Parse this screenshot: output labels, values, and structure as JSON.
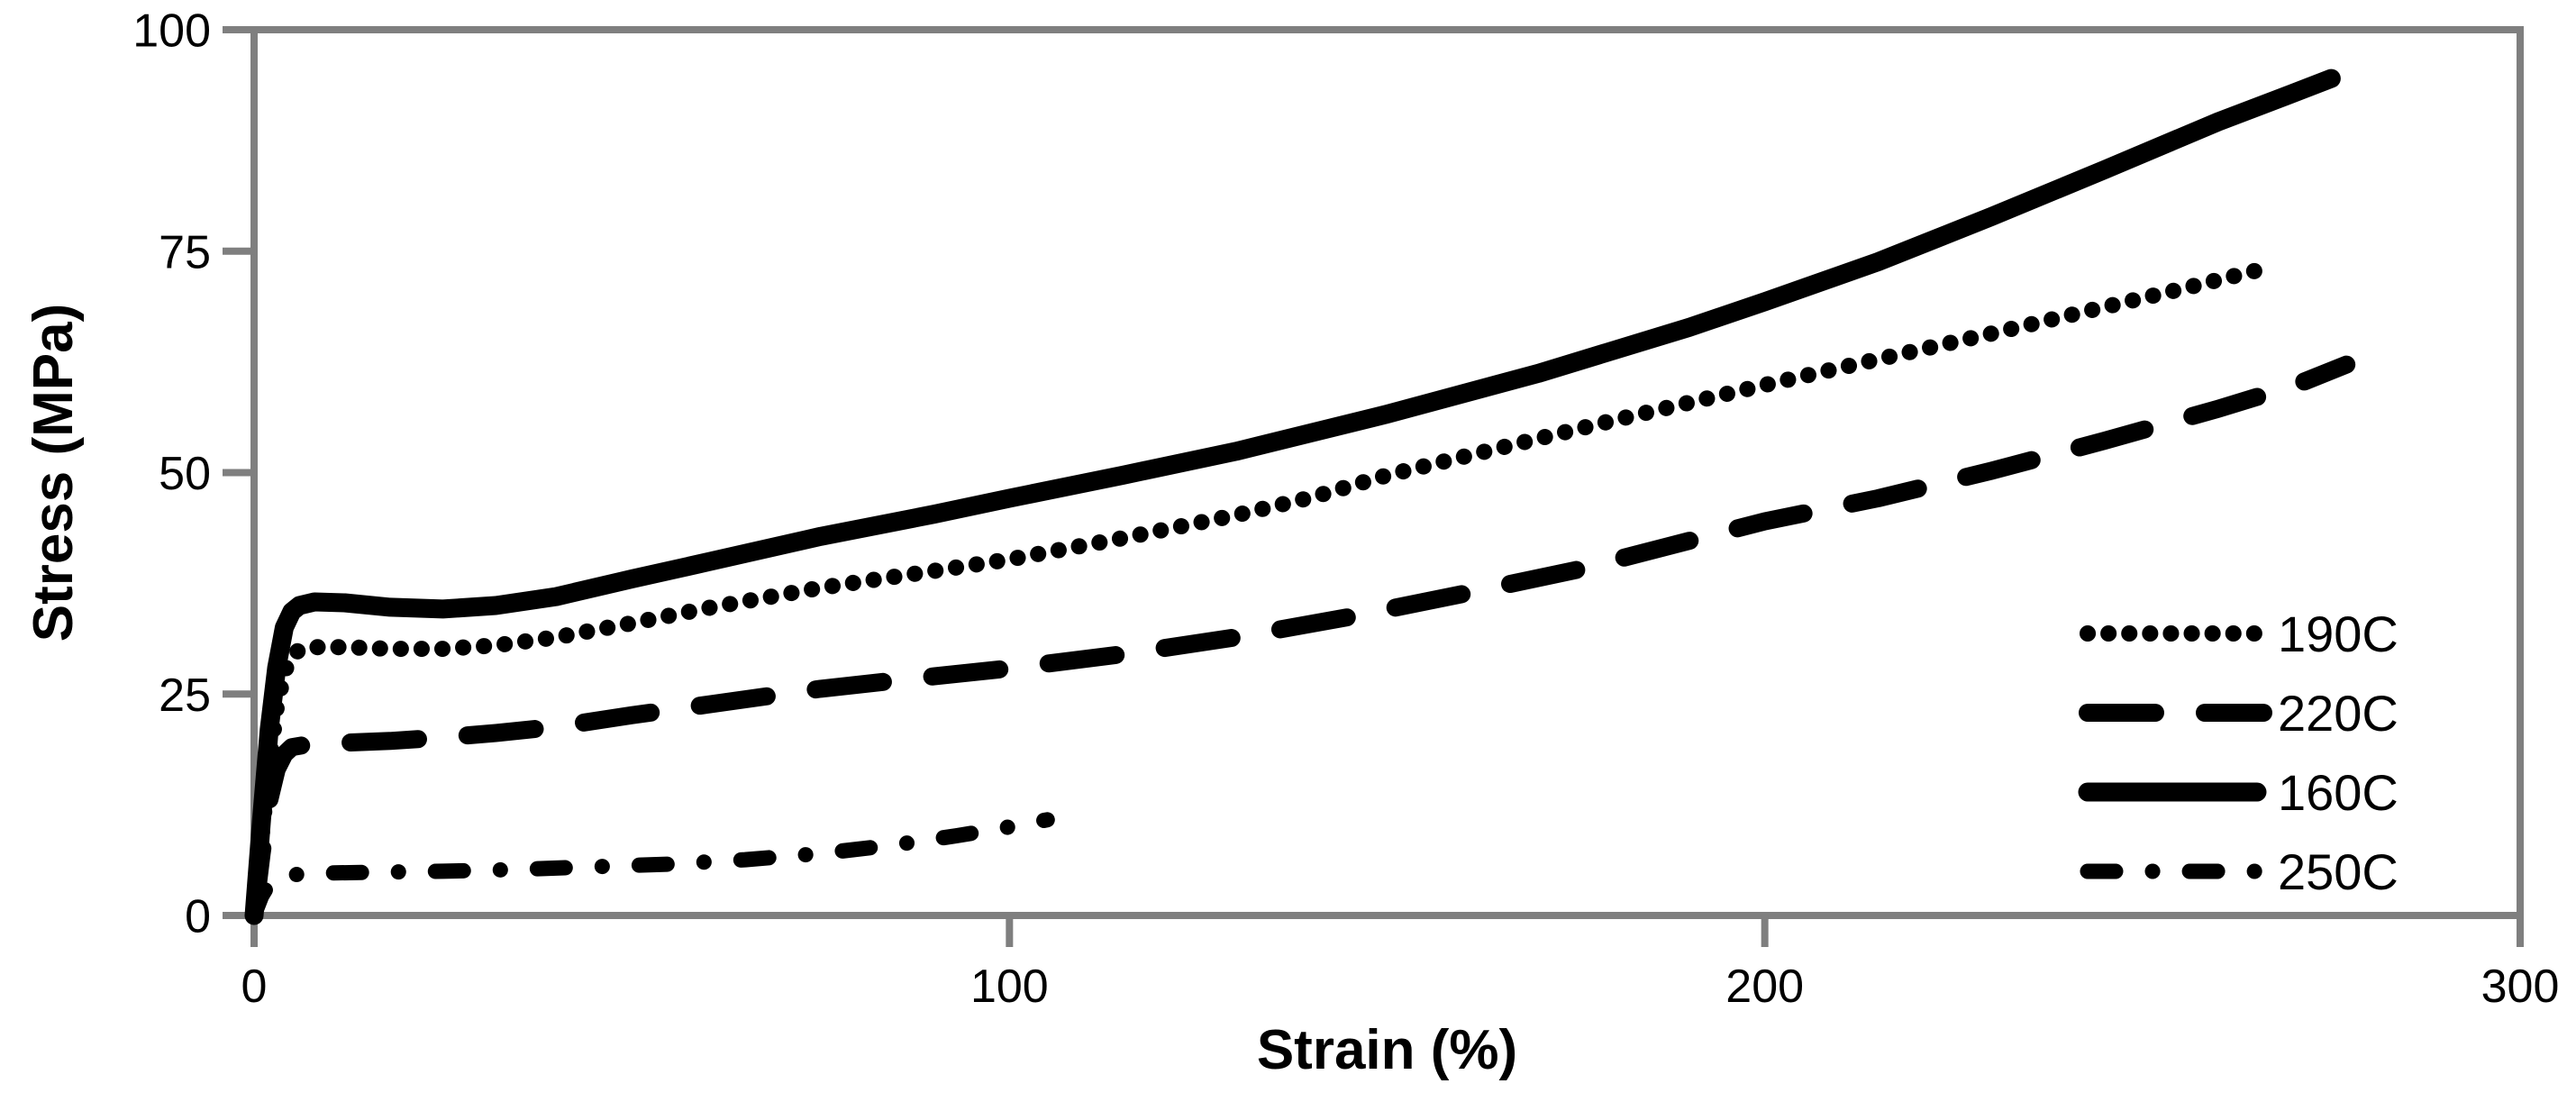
{
  "chart_data": {
    "type": "line",
    "title": "",
    "xlabel": "Strain (%)",
    "ylabel": "Stress (MPa)",
    "xlim": [
      0,
      300
    ],
    "ylim": [
      0,
      100
    ],
    "x_ticks": [
      0,
      100,
      200,
      300
    ],
    "y_ticks": [
      0,
      25,
      50,
      75,
      100
    ],
    "grid": false,
    "legend_position": "inside-lower-right",
    "axis_color": "#7f7f7f",
    "line_color": "#000000",
    "text_color": "#000000",
    "series": [
      {
        "name": "190C",
        "style": "dotted",
        "points": [
          [
            0,
            0
          ],
          [
            1,
            9
          ],
          [
            2,
            17
          ],
          [
            3,
            23.5
          ],
          [
            4,
            27.5
          ],
          [
            5,
            29.3
          ],
          [
            6,
            30.0
          ],
          [
            8,
            30.3
          ],
          [
            12,
            30.3
          ],
          [
            18,
            30.1
          ],
          [
            25,
            30.1
          ],
          [
            32,
            30.5
          ],
          [
            40,
            31.4
          ],
          [
            50,
            33.0
          ],
          [
            60,
            34.7
          ],
          [
            75,
            37.0
          ],
          [
            90,
            38.9
          ],
          [
            100,
            40.2
          ],
          [
            115,
            42.6
          ],
          [
            130,
            45.2
          ],
          [
            140,
            47.2
          ],
          [
            150,
            49.7
          ],
          [
            165,
            52.8
          ],
          [
            180,
            55.9
          ],
          [
            200,
            59.9
          ],
          [
            215,
            62.8
          ],
          [
            230,
            65.7
          ],
          [
            245,
            68.7
          ],
          [
            255,
            70.7
          ],
          [
            266,
            73.0
          ]
        ]
      },
      {
        "name": "220C",
        "style": "dashed",
        "points": [
          [
            0,
            0
          ],
          [
            1,
            7
          ],
          [
            2,
            13
          ],
          [
            3,
            16.5
          ],
          [
            4,
            18.2
          ],
          [
            5,
            19.0
          ],
          [
            7,
            19.3
          ],
          [
            12,
            19.5
          ],
          [
            18,
            19.7
          ],
          [
            25,
            20.1
          ],
          [
            32,
            20.6
          ],
          [
            40,
            21.3
          ],
          [
            50,
            22.6
          ],
          [
            60,
            23.8
          ],
          [
            75,
            25.6
          ],
          [
            90,
            27.0
          ],
          [
            100,
            27.9
          ],
          [
            115,
            29.5
          ],
          [
            130,
            31.4
          ],
          [
            145,
            33.7
          ],
          [
            160,
            36.3
          ],
          [
            175,
            39.0
          ],
          [
            190,
            42.3
          ],
          [
            200,
            44.5
          ],
          [
            215,
            47.1
          ],
          [
            230,
            50.2
          ],
          [
            245,
            53.6
          ],
          [
            260,
            57.2
          ],
          [
            270,
            59.8
          ],
          [
            277,
            62.2
          ]
        ]
      },
      {
        "name": "160C",
        "style": "solid",
        "points": [
          [
            0,
            0
          ],
          [
            1,
            11
          ],
          [
            2,
            21
          ],
          [
            3,
            28
          ],
          [
            4,
            32.5
          ],
          [
            5,
            34.3
          ],
          [
            6,
            35.0
          ],
          [
            8,
            35.4
          ],
          [
            12,
            35.3
          ],
          [
            18,
            34.8
          ],
          [
            25,
            34.6
          ],
          [
            32,
            35.0
          ],
          [
            40,
            36.0
          ],
          [
            50,
            38.0
          ],
          [
            60,
            39.9
          ],
          [
            75,
            42.8
          ],
          [
            90,
            45.3
          ],
          [
            100,
            47.1
          ],
          [
            115,
            49.7
          ],
          [
            130,
            52.4
          ],
          [
            150,
            56.6
          ],
          [
            170,
            61.2
          ],
          [
            190,
            66.4
          ],
          [
            200,
            69.3
          ],
          [
            215,
            73.8
          ],
          [
            230,
            78.9
          ],
          [
            245,
            84.2
          ],
          [
            260,
            89.6
          ],
          [
            268,
            92.2
          ],
          [
            275,
            94.5
          ]
        ]
      },
      {
        "name": "250C",
        "style": "dash-dot",
        "points": [
          [
            0,
            0
          ],
          [
            1,
            2.2
          ],
          [
            2,
            3.6
          ],
          [
            3,
            4.2
          ],
          [
            5,
            4.6
          ],
          [
            10,
            4.8
          ],
          [
            18,
            4.9
          ],
          [
            25,
            5.0
          ],
          [
            35,
            5.2
          ],
          [
            45,
            5.5
          ],
          [
            55,
            5.8
          ],
          [
            65,
            6.3
          ],
          [
            75,
            7.0
          ],
          [
            85,
            8.0
          ],
          [
            93,
            9.0
          ],
          [
            100,
            10.0
          ],
          [
            105,
            10.8
          ]
        ]
      }
    ],
    "legend_entries": [
      "190C",
      "220C",
      "160C",
      "250C"
    ]
  }
}
